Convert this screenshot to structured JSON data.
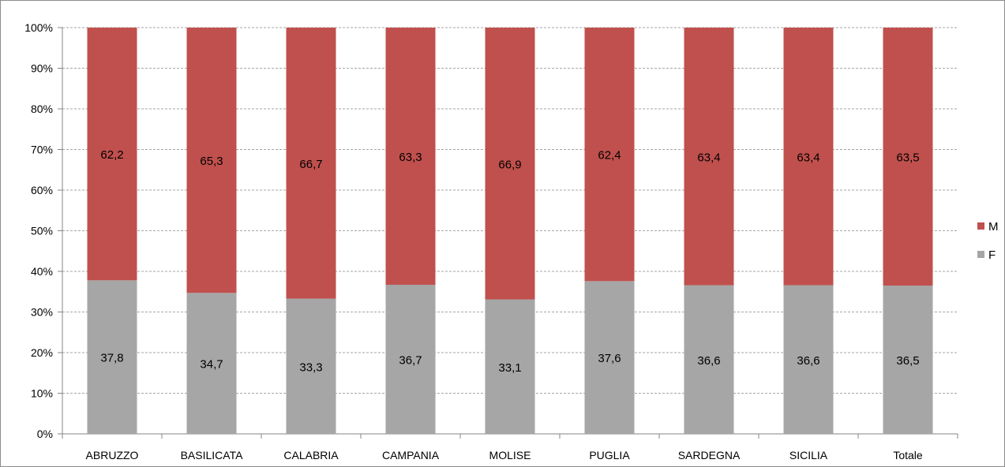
{
  "chart_data": {
    "type": "bar",
    "stacked": true,
    "percent": true,
    "categories": [
      "ABRUZZO",
      "BASILICATA",
      "CALABRIA",
      "CAMPANIA",
      "MOLISE",
      "PUGLIA",
      "SARDEGNA",
      "SICILIA",
      "Totale"
    ],
    "series": [
      {
        "name": "F",
        "color": "#a6a6a6",
        "values": [
          37.8,
          34.7,
          33.3,
          36.7,
          33.1,
          37.6,
          36.6,
          36.6,
          36.5
        ],
        "labels": [
          "37,8",
          "34,7",
          "33,3",
          "36,7",
          "33,1",
          "37,6",
          "36,6",
          "36,6",
          "36,5"
        ]
      },
      {
        "name": "M",
        "color": "#c0504d",
        "values": [
          62.2,
          65.3,
          66.7,
          63.3,
          66.9,
          62.4,
          63.4,
          63.4,
          63.5
        ],
        "labels": [
          "62,2",
          "65,3",
          "66,7",
          "63,3",
          "66,9",
          "62,4",
          "63,4",
          "63,4",
          "63,5"
        ]
      }
    ],
    "y_ticks": [
      "0%",
      "10%",
      "20%",
      "30%",
      "40%",
      "50%",
      "60%",
      "70%",
      "80%",
      "90%",
      "100%"
    ],
    "ylim": [
      0,
      100
    ],
    "grid": true,
    "legend": {
      "position": "right",
      "order": [
        "M",
        "F"
      ]
    }
  }
}
